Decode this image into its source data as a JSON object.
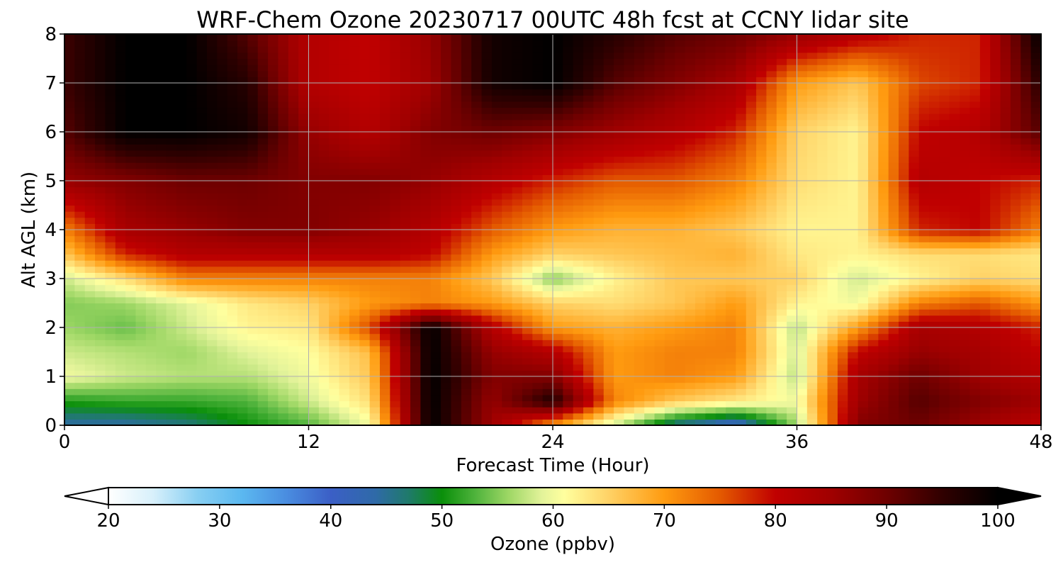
{
  "chart_data": {
    "type": "heatmap",
    "title": "WRF-Chem Ozone  20230717 00UTC 48h fcst at CCNY lidar site",
    "xlabel": "Forecast Time (Hour)",
    "ylabel": "Alt AGL (km)",
    "x_ticks": [
      "0",
      "12",
      "24",
      "36",
      "48"
    ],
    "y_ticks": [
      "0",
      "1",
      "2",
      "3",
      "4",
      "5",
      "6",
      "7",
      "8"
    ],
    "xlim": [
      0,
      48
    ],
    "ylim": [
      0,
      8
    ],
    "grid": true,
    "colorbar": {
      "label": "Ozone  (ppbv)",
      "ticks": [
        "20",
        "30",
        "40",
        "50",
        "60",
        "70",
        "80",
        "90",
        "100"
      ],
      "range": [
        20,
        100
      ],
      "extend": "both",
      "stops": [
        {
          "v": 20,
          "c": "#ffffff"
        },
        {
          "v": 24,
          "c": "#d8f0fb"
        },
        {
          "v": 28,
          "c": "#88cff2"
        },
        {
          "v": 32,
          "c": "#5bb8f0"
        },
        {
          "v": 36,
          "c": "#4a8de0"
        },
        {
          "v": 40,
          "c": "#3b5fc6"
        },
        {
          "v": 44,
          "c": "#2f6aa8"
        },
        {
          "v": 47,
          "c": "#1f7a6a"
        },
        {
          "v": 50,
          "c": "#0a8f0a"
        },
        {
          "v": 53,
          "c": "#4fb33c"
        },
        {
          "v": 56,
          "c": "#9ed765"
        },
        {
          "v": 59,
          "c": "#e3f39a"
        },
        {
          "v": 61,
          "c": "#ffff9e"
        },
        {
          "v": 65,
          "c": "#ffd266"
        },
        {
          "v": 70,
          "c": "#ff9b10"
        },
        {
          "v": 75,
          "c": "#e45a00"
        },
        {
          "v": 80,
          "c": "#c00000"
        },
        {
          "v": 85,
          "c": "#a00000"
        },
        {
          "v": 90,
          "c": "#6e0000"
        },
        {
          "v": 95,
          "c": "#300000"
        },
        {
          "v": 100,
          "c": "#000000"
        }
      ]
    },
    "hours": [
      0,
      3,
      6,
      9,
      12,
      15,
      18,
      21,
      24,
      27,
      30,
      33,
      36,
      39,
      42,
      45,
      48
    ],
    "altitudes_km": [
      0,
      0.5,
      1,
      1.5,
      2,
      2.5,
      3,
      3.5,
      4,
      5,
      6,
      7,
      8
    ],
    "ozone_ppbv": [
      [
        44,
        44,
        46,
        50,
        53,
        60,
        100,
        85,
        70,
        58,
        45,
        40,
        56,
        88,
        90,
        85,
        80
      ],
      [
        51,
        52,
        52,
        53,
        58,
        64,
        100,
        86,
        97,
        72,
        66,
        63,
        60,
        85,
        92,
        88,
        85
      ],
      [
        60,
        58,
        57,
        57,
        60,
        66,
        100,
        88,
        88,
        70,
        72,
        70,
        57,
        84,
        90,
        85,
        82
      ],
      [
        58,
        57,
        56,
        59,
        61,
        67,
        100,
        86,
        82,
        70,
        72,
        72,
        58,
        80,
        86,
        84,
        80
      ],
      [
        56,
        54,
        58,
        62,
        63,
        76,
        100,
        82,
        70,
        68,
        70,
        72,
        57,
        70,
        84,
        82,
        78
      ],
      [
        55,
        56,
        59,
        63,
        65,
        70,
        72,
        70,
        65,
        64,
        66,
        70,
        62,
        60,
        72,
        75,
        70
      ],
      [
        58,
        64,
        72,
        72,
        72,
        72,
        72,
        66,
        55,
        62,
        66,
        66,
        65,
        58,
        62,
        65,
        64
      ],
      [
        66,
        78,
        82,
        82,
        82,
        82,
        80,
        70,
        65,
        66,
        67,
        68,
        63,
        62,
        64,
        64,
        63
      ],
      [
        72,
        84,
        86,
        88,
        88,
        86,
        82,
        75,
        70,
        68,
        68,
        66,
        62,
        62,
        78,
        80,
        72
      ],
      [
        86,
        88,
        90,
        90,
        88,
        88,
        86,
        82,
        78,
        75,
        75,
        72,
        64,
        62,
        82,
        80,
        78
      ],
      [
        92,
        100,
        100,
        98,
        86,
        82,
        88,
        90,
        88,
        85,
        82,
        78,
        65,
        62,
        80,
        82,
        92
      ],
      [
        94,
        100,
        100,
        96,
        82,
        80,
        85,
        98,
        100,
        92,
        88,
        84,
        70,
        66,
        76,
        78,
        96
      ],
      [
        94,
        100,
        100,
        92,
        82,
        80,
        86,
        98,
        100,
        96,
        92,
        90,
        86,
        82,
        78,
        78,
        100
      ]
    ]
  }
}
